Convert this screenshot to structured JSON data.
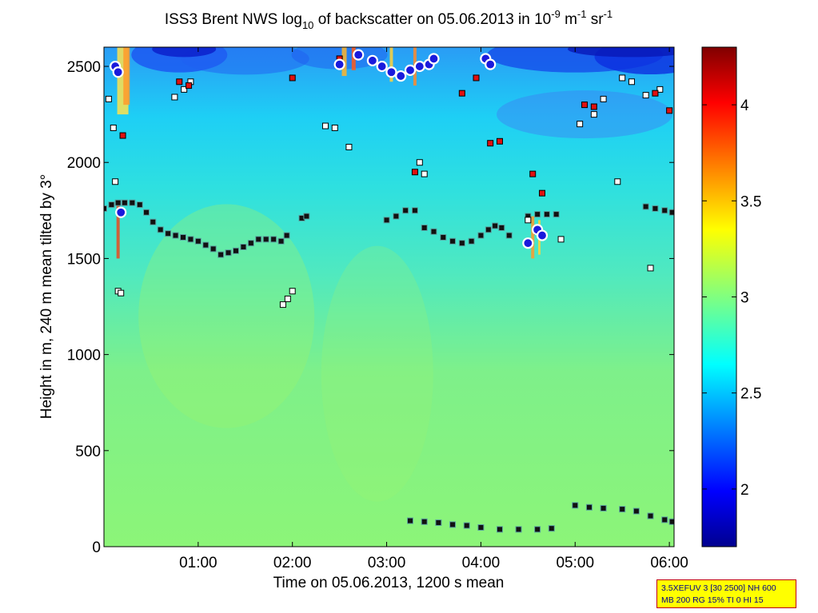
{
  "chart_data": {
    "type": "heatmap",
    "title": {
      "prefix": "ISS3 Brent NWS log",
      "sub": "10",
      "middle": " of backscatter on 05.06.2013 in 10",
      "exp1": "-9",
      "unit1": " m",
      "exp2": "-1",
      "unit2": " sr",
      "exp3": "-1"
    },
    "xlabel": "Time on 05.06.2013, 1200 s mean",
    "ylabel": "Height in m, 240 m mean tilted by 3°",
    "x_unit": "hours",
    "xlim": [
      0.0,
      6.05
    ],
    "ylim": [
      0,
      2600
    ],
    "x_ticks": [
      {
        "value": 1,
        "label": "01:00"
      },
      {
        "value": 2,
        "label": "02:00"
      },
      {
        "value": 3,
        "label": "03:00"
      },
      {
        "value": 4,
        "label": "04:00"
      },
      {
        "value": 5,
        "label": "05:00"
      },
      {
        "value": 6,
        "label": "06:00"
      }
    ],
    "y_ticks": [
      {
        "value": 0,
        "label": "0"
      },
      {
        "value": 500,
        "label": "500"
      },
      {
        "value": 1000,
        "label": "1000"
      },
      {
        "value": 1500,
        "label": "1500"
      },
      {
        "value": 2000,
        "label": "2000"
      },
      {
        "value": 2500,
        "label": "2500"
      }
    ],
    "colorbar": {
      "range": [
        1.7,
        4.3
      ],
      "ticks": [
        {
          "value": 2,
          "label": "2"
        },
        {
          "value": 2.5,
          "label": "2.5"
        },
        {
          "value": 3,
          "label": "3"
        },
        {
          "value": 3.5,
          "label": "3.5"
        },
        {
          "value": 4,
          "label": "4"
        }
      ],
      "colormap": "jet"
    },
    "field_description": {
      "background_value_low": 2.9,
      "background_value_high": 2.45
    },
    "series": [
      {
        "name": "boundary-layer-top",
        "marker": "black-square",
        "points": [
          [
            0.0,
            1760
          ],
          [
            0.08,
            1780
          ],
          [
            0.15,
            1790
          ],
          [
            0.22,
            1790
          ],
          [
            0.3,
            1790
          ],
          [
            0.38,
            1780
          ],
          [
            0.45,
            1740
          ],
          [
            0.52,
            1690
          ],
          [
            0.6,
            1650
          ],
          [
            0.68,
            1630
          ],
          [
            0.76,
            1620
          ],
          [
            0.84,
            1610
          ],
          [
            0.92,
            1600
          ],
          [
            1.0,
            1590
          ],
          [
            1.08,
            1570
          ],
          [
            1.16,
            1550
          ],
          [
            1.24,
            1520
          ],
          [
            1.32,
            1530
          ],
          [
            1.4,
            1540
          ],
          [
            1.48,
            1560
          ],
          [
            1.56,
            1580
          ],
          [
            1.64,
            1600
          ],
          [
            1.72,
            1600
          ],
          [
            1.8,
            1600
          ],
          [
            1.88,
            1590
          ],
          [
            1.94,
            1620
          ],
          [
            2.1,
            1710
          ],
          [
            2.15,
            1720
          ],
          [
            3.0,
            1700
          ],
          [
            3.1,
            1720
          ],
          [
            3.2,
            1750
          ],
          [
            3.3,
            1750
          ],
          [
            3.4,
            1660
          ],
          [
            3.5,
            1640
          ],
          [
            3.6,
            1610
          ],
          [
            3.7,
            1590
          ],
          [
            3.8,
            1580
          ],
          [
            3.9,
            1590
          ],
          [
            4.0,
            1620
          ],
          [
            4.08,
            1650
          ],
          [
            4.15,
            1670
          ],
          [
            4.22,
            1660
          ],
          [
            4.3,
            1620
          ],
          [
            4.5,
            1720
          ],
          [
            4.6,
            1730
          ],
          [
            4.7,
            1730
          ],
          [
            4.8,
            1730
          ],
          [
            5.75,
            1770
          ],
          [
            5.85,
            1760
          ],
          [
            5.95,
            1750
          ],
          [
            6.03,
            1740
          ]
        ]
      },
      {
        "name": "surface-layer",
        "marker": "black-square",
        "points": [
          [
            3.25,
            135
          ],
          [
            3.4,
            130
          ],
          [
            3.55,
            125
          ],
          [
            3.7,
            115
          ],
          [
            3.85,
            110
          ],
          [
            4.0,
            100
          ],
          [
            4.2,
            90
          ],
          [
            4.4,
            90
          ],
          [
            4.6,
            90
          ],
          [
            4.75,
            95
          ],
          [
            5.0,
            215
          ],
          [
            5.15,
            205
          ],
          [
            5.3,
            200
          ],
          [
            5.5,
            195
          ],
          [
            5.65,
            185
          ],
          [
            5.8,
            160
          ],
          [
            5.95,
            140
          ],
          [
            6.03,
            130
          ]
        ]
      },
      {
        "name": "upper-layer",
        "marker": "white-square",
        "points": [
          [
            0.05,
            2330
          ],
          [
            0.1,
            2180
          ],
          [
            0.12,
            1900
          ],
          [
            0.15,
            1330
          ],
          [
            0.18,
            1320
          ],
          [
            0.75,
            2340
          ],
          [
            0.85,
            2380
          ],
          [
            0.92,
            2420
          ],
          [
            1.9,
            1260
          ],
          [
            1.95,
            1290
          ],
          [
            2.0,
            1330
          ],
          [
            2.35,
            2190
          ],
          [
            2.45,
            2180
          ],
          [
            2.6,
            2080
          ],
          [
            3.35,
            2000
          ],
          [
            3.4,
            1940
          ],
          [
            4.5,
            1700
          ],
          [
            4.6,
            1640
          ],
          [
            5.05,
            2200
          ],
          [
            5.2,
            2250
          ],
          [
            5.3,
            2330
          ],
          [
            5.5,
            2440
          ],
          [
            5.6,
            2420
          ],
          [
            5.75,
            2350
          ],
          [
            5.9,
            2380
          ],
          [
            5.8,
            1450
          ],
          [
            4.85,
            1600
          ],
          [
            5.45,
            1900
          ]
        ]
      },
      {
        "name": "red-highlights",
        "marker": "red-square",
        "points": [
          [
            0.2,
            2140
          ],
          [
            0.8,
            2420
          ],
          [
            0.9,
            2400
          ],
          [
            2.0,
            2440
          ],
          [
            2.5,
            2540
          ],
          [
            3.3,
            1950
          ],
          [
            3.8,
            2360
          ],
          [
            3.95,
            2440
          ],
          [
            4.1,
            2100
          ],
          [
            4.2,
            2110
          ],
          [
            4.55,
            1940
          ],
          [
            4.65,
            1840
          ],
          [
            5.1,
            2300
          ],
          [
            5.2,
            2290
          ],
          [
            5.85,
            2360
          ],
          [
            6.0,
            2270
          ]
        ]
      },
      {
        "name": "strong-echo",
        "marker": "blue-white-circle",
        "points": [
          [
            0.12,
            2500
          ],
          [
            0.15,
            2470
          ],
          [
            0.18,
            1740
          ],
          [
            2.5,
            2510
          ],
          [
            2.7,
            2560
          ],
          [
            2.85,
            2530
          ],
          [
            2.95,
            2500
          ],
          [
            3.05,
            2470
          ],
          [
            3.15,
            2450
          ],
          [
            3.25,
            2480
          ],
          [
            3.35,
            2500
          ],
          [
            3.45,
            2510
          ],
          [
            3.5,
            2540
          ],
          [
            4.05,
            2540
          ],
          [
            4.1,
            2510
          ],
          [
            4.5,
            1580
          ],
          [
            4.6,
            1650
          ],
          [
            4.65,
            1620
          ]
        ]
      }
    ]
  },
  "info_box": {
    "line1": "3.5XEFUV 3 [30 2500] NH 600",
    "line2": "MB 200 RG 15% TI 0 HI 15"
  }
}
